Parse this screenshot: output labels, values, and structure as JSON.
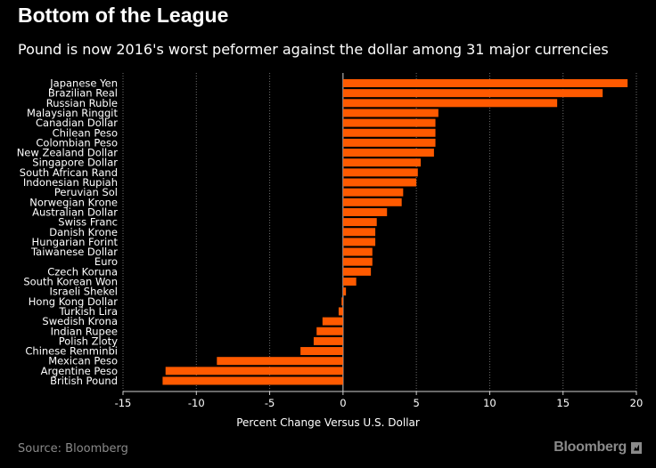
{
  "header": {
    "title": "Bottom of the League",
    "subtitle": "Pound is now 2016's worst peformer against the dollar among 31 major currencies"
  },
  "footer": {
    "source": "Source: Bloomberg",
    "brand": "Bloomberg"
  },
  "colors": {
    "bar": "#ff5a00",
    "background": "#000000",
    "text": "#ffffff",
    "grid": "#6e6e6e",
    "muted": "#8a8a8a"
  },
  "chart_data": {
    "type": "bar",
    "orientation": "horizontal",
    "title": "Bottom of the League",
    "subtitle": "Pound is now 2016's worst peformer against the dollar among 31 major currencies",
    "xlabel": "Percent Change Versus U.S. Dollar",
    "ylabel": "",
    "xlim": [
      -15,
      20
    ],
    "xticks": [
      -15,
      -10,
      -5,
      0,
      5,
      10,
      15,
      20
    ],
    "grid": "vertical dotted",
    "categories": [
      "Japanese Yen",
      "Brazilian Real",
      "Russian Ruble",
      "Malaysian Ringgit",
      "Canadian Dollar",
      "Chilean Peso",
      "Colombian Peso",
      "New Zealand Dollar",
      "Singapore Dollar",
      "South African Rand",
      "Indonesian Rupiah",
      "Peruvian Sol",
      "Norwegian Krone",
      "Australian Dollar",
      "Swiss Franc",
      "Danish Krone",
      "Hungarian Forint",
      "Taiwanese Dollar",
      "Euro",
      "Czech Koruna",
      "South Korean Won",
      "Israeli Shekel",
      "Hong Kong Dollar",
      "Turkish Lira",
      "Swedish Krona",
      "Indian Rupee",
      "Polish Zloty",
      "Chinese Renminbi",
      "Mexican Peso",
      "Argentine Peso",
      "British Pound"
    ],
    "values": [
      19.4,
      17.7,
      14.6,
      6.5,
      6.3,
      6.3,
      6.3,
      6.2,
      5.3,
      5.1,
      5.0,
      4.1,
      4.0,
      3.0,
      2.3,
      2.2,
      2.2,
      2.0,
      2.0,
      1.9,
      0.9,
      0.2,
      -0.1,
      -0.3,
      -1.4,
      -1.8,
      -2.0,
      -2.9,
      -8.6,
      -12.1,
      -12.3
    ]
  }
}
